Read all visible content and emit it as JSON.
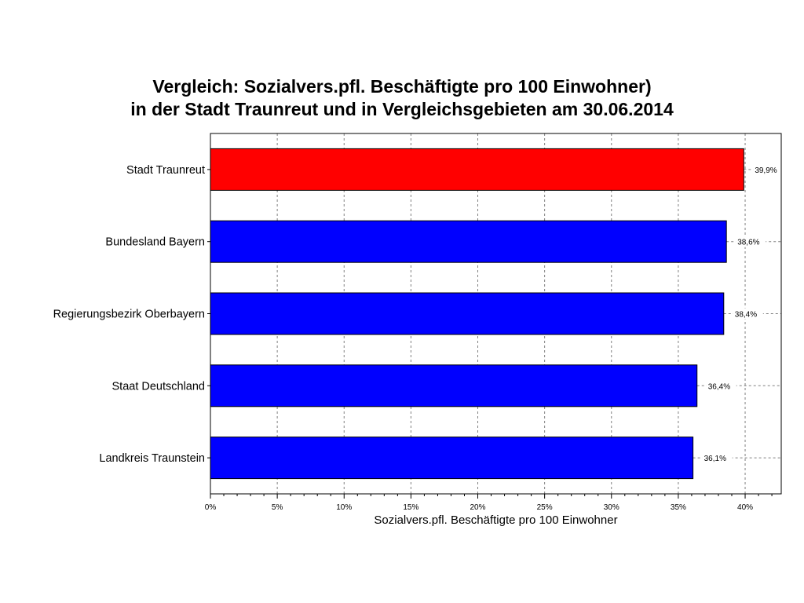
{
  "chart_data": {
    "type": "bar",
    "orientation": "horizontal",
    "title_lines": [
      "Vergleich: Sozialvers.pfl. Beschäftigte pro 100 Einwohner)",
      "in der Stadt Traunreut und in Vergleichsgebieten am 30.06.2014"
    ],
    "xlabel": "Sozialvers.pfl. Beschäftigte pro 100 Einwohner",
    "ylabel": "",
    "categories": [
      "Stadt Traunreut",
      "Bundesland Bayern",
      "Regierungsbezirk Oberbayern",
      "Staat Deutschland",
      "Landkreis Traunstein"
    ],
    "values": [
      39.9,
      38.6,
      38.4,
      36.4,
      36.1
    ],
    "value_labels": [
      "39,9%",
      "38,6%",
      "38,4%",
      "36,4%",
      "36,1%"
    ],
    "bar_colors": [
      "#ff0000",
      "#0000ff",
      "#0000ff",
      "#0000ff",
      "#0000ff"
    ],
    "xlim": [
      0,
      42.7
    ],
    "xticks": [
      0,
      5,
      10,
      15,
      20,
      25,
      30,
      35,
      40
    ],
    "xtick_labels": [
      "0%",
      "5%",
      "10%",
      "15%",
      "20%",
      "25%",
      "30%",
      "35%",
      "40%"
    ],
    "grid": true,
    "legend": "none"
  }
}
